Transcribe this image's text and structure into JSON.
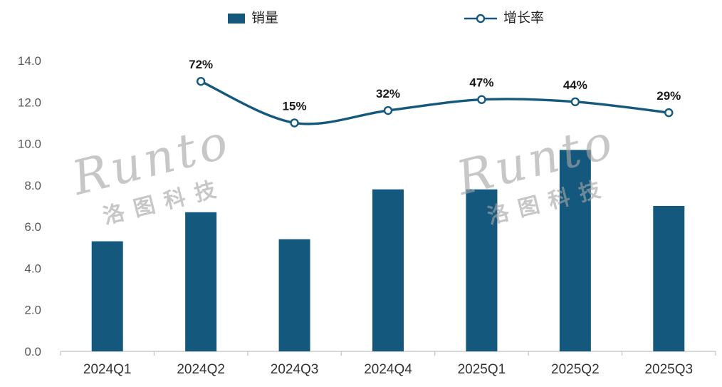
{
  "legend": {
    "bar_label": "销量",
    "line_label": "增长率"
  },
  "watermark": {
    "brand": "Runto",
    "cn": "洛图科技"
  },
  "colors": {
    "primary": "#15587e",
    "axis_text": "#595959",
    "x_label_text": "#333333",
    "data_label_text": "#1a1a1a",
    "axis_line": "#c0c0c0"
  },
  "chart_data": {
    "type": "bar+line",
    "title": "",
    "categories": [
      "2024Q1",
      "2024Q2",
      "2024Q3",
      "2024Q4",
      "2025Q1",
      "2025Q2",
      "2025Q3"
    ],
    "series": [
      {
        "name": "销量",
        "type": "bar",
        "axis": "primary",
        "values": [
          5.3,
          6.7,
          5.4,
          7.8,
          7.8,
          9.7,
          7.0
        ]
      },
      {
        "name": "增长率",
        "type": "line",
        "axis": "secondary",
        "values": [
          null,
          72,
          15,
          32,
          47,
          44,
          29
        ],
        "labels": [
          null,
          "72%",
          "15%",
          "32%",
          "47%",
          "44%",
          "29%"
        ]
      }
    ],
    "ylim": [
      0,
      14
    ],
    "ytick_step": 2,
    "ytick_format": "one_decimal",
    "grid": false,
    "legend_position": "top",
    "secondary_axis_visible": false,
    "line_band_primary": [
      11.0,
      13.0
    ]
  }
}
